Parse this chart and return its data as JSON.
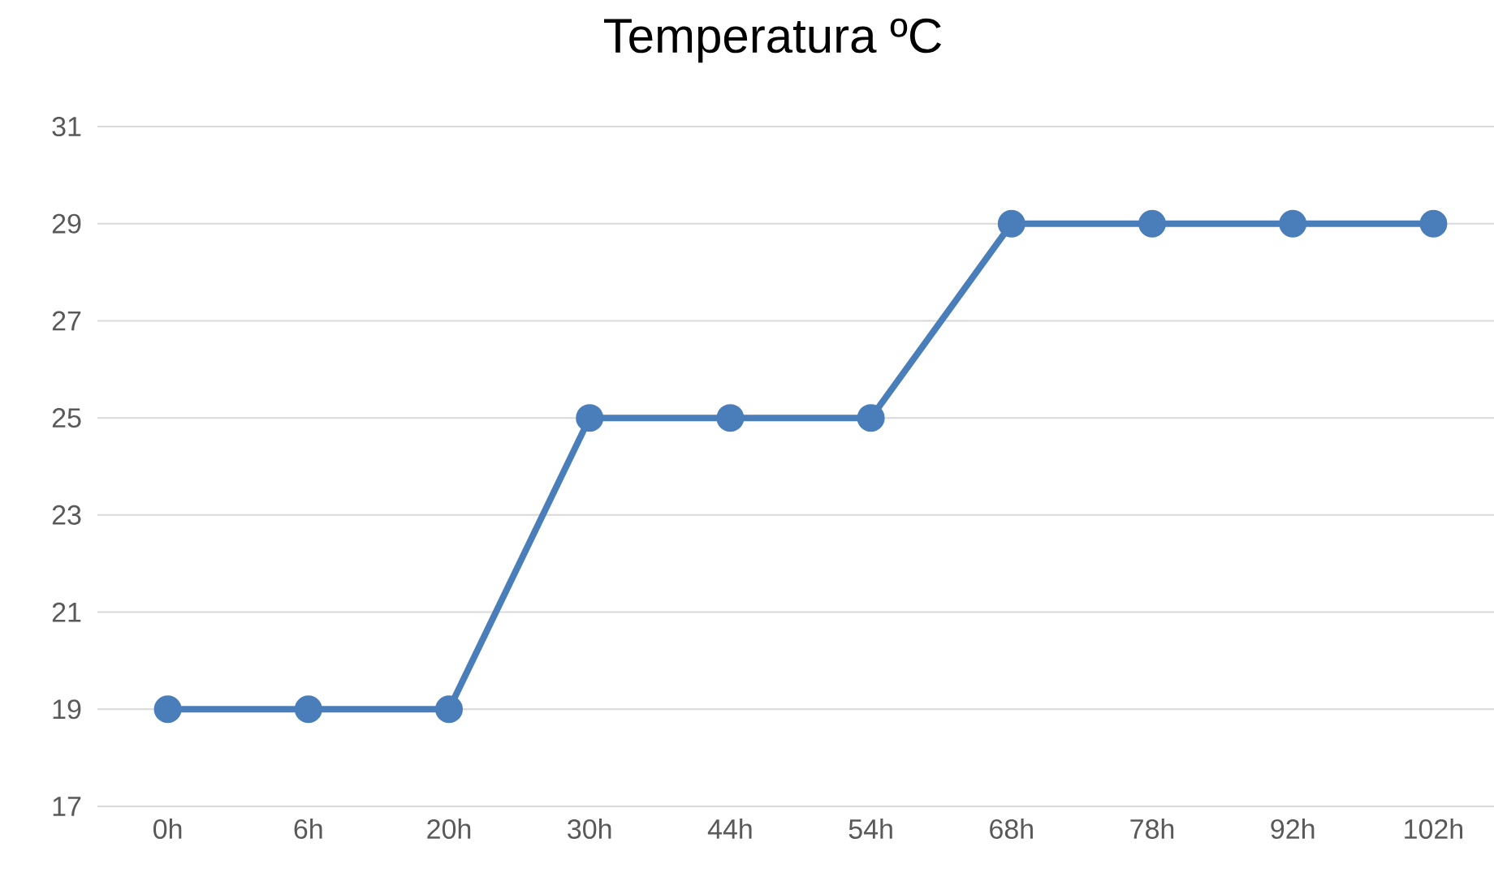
{
  "chart_data": {
    "type": "line",
    "title": "Temperatura ºC",
    "categories": [
      "0h",
      "6h",
      "20h",
      "30h",
      "44h",
      "54h",
      "68h",
      "78h",
      "92h",
      "102h"
    ],
    "values": [
      19,
      19,
      19,
      25,
      25,
      25,
      29,
      29,
      29,
      29
    ],
    "color": "#4a7ebb",
    "ylim": [
      17,
      31
    ],
    "yticks": [
      17,
      19,
      21,
      23,
      25,
      27,
      29,
      31
    ],
    "grid": "y",
    "marker": "circle",
    "line_style": "solid"
  }
}
